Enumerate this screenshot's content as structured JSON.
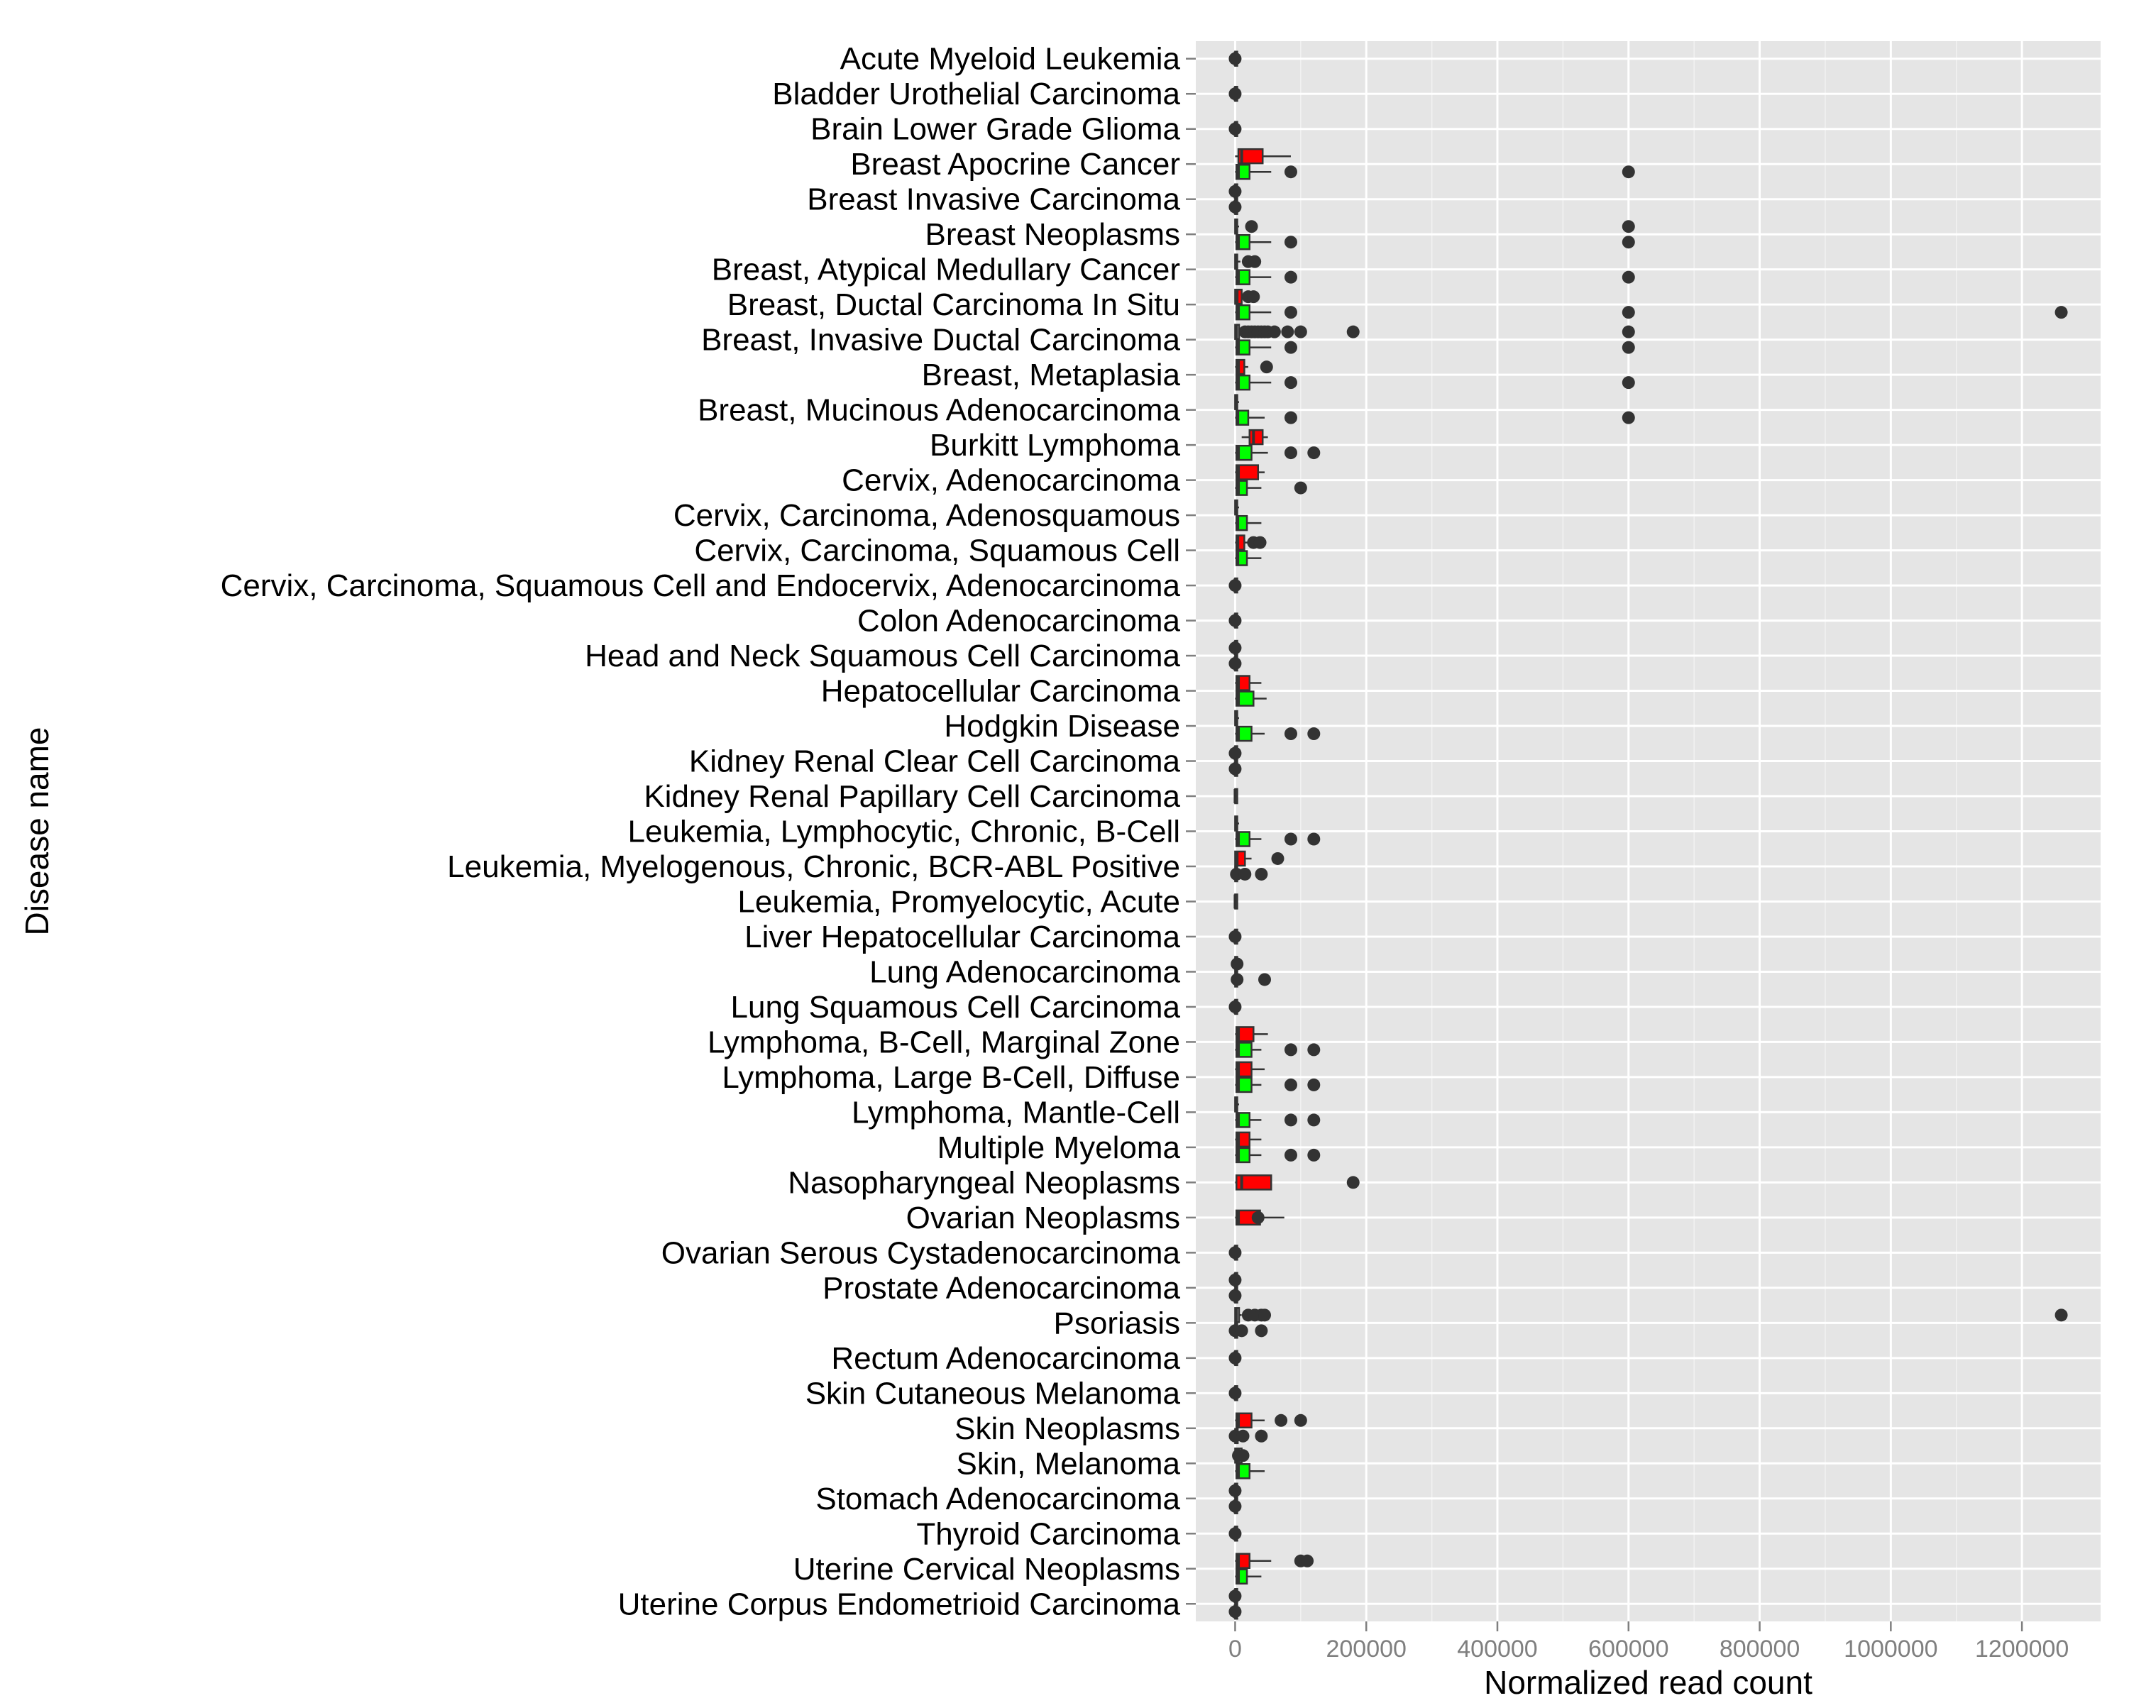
{
  "chart_data": {
    "type": "boxplot",
    "orientation": "horizontal",
    "xlabel": "Normalized read count",
    "ylabel": "Disease name",
    "xlim": [
      -60000,
      1320000
    ],
    "x_ticks": [
      0,
      200000,
      400000,
      600000,
      800000,
      1000000,
      1200000
    ],
    "x_tick_labels": [
      "0",
      "200000",
      "400000",
      "600000",
      "800000",
      "1000000",
      "1200000"
    ],
    "grid": true,
    "legend": "none",
    "series_colors": {
      "red": "#ff0000",
      "green": "#00ff00"
    },
    "panel_background": "#e5e5e5",
    "categories": [
      "Acute Myeloid Leukemia",
      "Bladder Urothelial Carcinoma",
      "Brain Lower Grade Glioma",
      "Breast Apocrine Cancer",
      "Breast Invasive Carcinoma",
      "Breast Neoplasms",
      "Breast, Atypical Medullary Cancer",
      "Breast, Ductal Carcinoma In Situ",
      "Breast, Invasive Ductal Carcinoma",
      "Breast, Metaplasia",
      "Breast, Mucinous Adenocarcinoma",
      "Burkitt Lymphoma",
      "Cervix, Adenocarcinoma",
      "Cervix, Carcinoma, Adenosquamous",
      "Cervix, Carcinoma, Squamous Cell",
      "Cervix, Carcinoma, Squamous Cell and Endocervix, Adenocarcinoma",
      "Colon Adenocarcinoma",
      "Head and Neck Squamous Cell Carcinoma",
      "Hepatocellular Carcinoma",
      "Hodgkin Disease",
      "Kidney Renal Clear Cell Carcinoma",
      "Kidney Renal Papillary Cell Carcinoma",
      "Leukemia, Lymphocytic, Chronic, B-Cell",
      "Leukemia, Myelogenous, Chronic, BCR-ABL Positive",
      "Leukemia, Promyelocytic, Acute",
      "Liver Hepatocellular Carcinoma",
      "Lung Adenocarcinoma",
      "Lung Squamous Cell Carcinoma",
      "Lymphoma, B-Cell, Marginal Zone",
      "Lymphoma, Large B-Cell, Diffuse",
      "Lymphoma, Mantle-Cell",
      "Multiple Myeloma",
      "Nasopharyngeal Neoplasms",
      "Ovarian Neoplasms",
      "Ovarian Serous Cystadenocarcinoma",
      "Prostate Adenocarcinoma",
      "Psoriasis",
      "Rectum Adenocarcinoma",
      "Skin Cutaneous Melanoma",
      "Skin Neoplasms",
      "Skin, Melanoma",
      "Stomach Adenocarcinoma",
      "Thyroid Carcinoma",
      "Uterine Cervical Neoplasms",
      "Uterine Corpus Endometrioid Carcinoma"
    ],
    "boxes": [
      {
        "category": 0,
        "group": "other",
        "q1": 0,
        "median": 0,
        "q3": 0,
        "wlo": 0,
        "whi": 0,
        "outliers": [
          0
        ]
      },
      {
        "category": 1,
        "group": "other",
        "q1": 0,
        "median": 0,
        "q3": 0,
        "wlo": 0,
        "whi": 0,
        "outliers": [
          0
        ]
      },
      {
        "category": 2,
        "group": "other",
        "q1": 0,
        "median": 0,
        "q3": 0,
        "wlo": 0,
        "whi": 0,
        "outliers": [
          0
        ]
      },
      {
        "category": 3,
        "group": "red",
        "q1": 5000,
        "median": 10000,
        "q3": 42000,
        "wlo": 0,
        "whi": 85000,
        "outliers": []
      },
      {
        "category": 3,
        "group": "green",
        "q1": 2000,
        "median": 5000,
        "q3": 22000,
        "wlo": 0,
        "whi": 55000,
        "outliers": [
          85000,
          600000
        ]
      },
      {
        "category": 4,
        "group": "other",
        "q1": 0,
        "median": 0,
        "q3": 0,
        "wlo": 0,
        "whi": 0,
        "outliers": [
          0
        ]
      },
      {
        "category": 4,
        "group": "other",
        "q1": 0,
        "median": 0,
        "q3": 0,
        "wlo": 0,
        "whi": 0,
        "outliers": [
          0
        ]
      },
      {
        "category": 5,
        "group": "other",
        "q1": 0,
        "median": 1000,
        "q3": 3000,
        "wlo": 0,
        "whi": 6000,
        "outliers": [
          25000,
          600000
        ]
      },
      {
        "category": 5,
        "group": "green",
        "q1": 2000,
        "median": 5000,
        "q3": 22000,
        "wlo": 0,
        "whi": 55000,
        "outliers": [
          85000,
          600000
        ]
      },
      {
        "category": 6,
        "group": "other",
        "q1": 0,
        "median": 1000,
        "q3": 3000,
        "wlo": 0,
        "whi": 8000,
        "outliers": [
          20000,
          30000
        ]
      },
      {
        "category": 6,
        "group": "green",
        "q1": 2000,
        "median": 5000,
        "q3": 22000,
        "wlo": 0,
        "whi": 55000,
        "outliers": [
          85000,
          600000
        ]
      },
      {
        "category": 7,
        "group": "red",
        "q1": 0,
        "median": 3000,
        "q3": 10000,
        "wlo": 0,
        "whi": 15000,
        "outliers": [
          20000,
          28000
        ]
      },
      {
        "category": 7,
        "group": "green",
        "q1": 2000,
        "median": 5000,
        "q3": 22000,
        "wlo": 0,
        "whi": 55000,
        "outliers": [
          85000,
          600000,
          1260000
        ]
      },
      {
        "category": 8,
        "group": "other",
        "q1": 0,
        "median": 2000,
        "q3": 6000,
        "wlo": 0,
        "whi": 12000,
        "outliers": [
          15000,
          20000,
          25000,
          30000,
          35000,
          40000,
          45000,
          50000,
          60000,
          80000,
          100000,
          180000,
          600000
        ]
      },
      {
        "category": 8,
        "group": "green",
        "q1": 2000,
        "median": 5000,
        "q3": 22000,
        "wlo": 0,
        "whi": 55000,
        "outliers": [
          85000,
          600000
        ]
      },
      {
        "category": 9,
        "group": "red",
        "q1": 2000,
        "median": 5000,
        "q3": 14000,
        "wlo": 0,
        "whi": 20000,
        "outliers": [
          48000
        ]
      },
      {
        "category": 9,
        "group": "green",
        "q1": 2000,
        "median": 5000,
        "q3": 22000,
        "wlo": 0,
        "whi": 55000,
        "outliers": [
          85000,
          600000
        ]
      },
      {
        "category": 10,
        "group": "other",
        "q1": 0,
        "median": 1000,
        "q3": 3000,
        "wlo": 0,
        "whi": 6000,
        "outliers": []
      },
      {
        "category": 10,
        "group": "green",
        "q1": 2000,
        "median": 4000,
        "q3": 20000,
        "wlo": 0,
        "whi": 45000,
        "outliers": [
          85000,
          600000
        ]
      },
      {
        "category": 11,
        "group": "red",
        "q1": 22000,
        "median": 28000,
        "q3": 42000,
        "wlo": 10000,
        "whi": 50000,
        "outliers": []
      },
      {
        "category": 11,
        "group": "green",
        "q1": 2000,
        "median": 5000,
        "q3": 25000,
        "wlo": 0,
        "whi": 50000,
        "outliers": [
          85000,
          120000
        ]
      },
      {
        "category": 12,
        "group": "red",
        "q1": 2000,
        "median": 5000,
        "q3": 35000,
        "wlo": 0,
        "whi": 45000,
        "outliers": []
      },
      {
        "category": 12,
        "group": "green",
        "q1": 2000,
        "median": 5000,
        "q3": 18000,
        "wlo": 0,
        "whi": 40000,
        "outliers": [
          100000
        ]
      },
      {
        "category": 13,
        "group": "other",
        "q1": 0,
        "median": 1000,
        "q3": 3000,
        "wlo": 0,
        "whi": 6000,
        "outliers": []
      },
      {
        "category": 13,
        "group": "green",
        "q1": 2000,
        "median": 4000,
        "q3": 18000,
        "wlo": 0,
        "whi": 40000,
        "outliers": []
      },
      {
        "category": 14,
        "group": "red",
        "q1": 2000,
        "median": 4000,
        "q3": 14000,
        "wlo": 0,
        "whi": 20000,
        "outliers": [
          28000,
          38000
        ]
      },
      {
        "category": 14,
        "group": "green",
        "q1": 2000,
        "median": 4000,
        "q3": 18000,
        "wlo": 0,
        "whi": 40000,
        "outliers": []
      },
      {
        "category": 15,
        "group": "other",
        "q1": 0,
        "median": 0,
        "q3": 0,
        "wlo": 0,
        "whi": 0,
        "outliers": [
          0
        ]
      },
      {
        "category": 16,
        "group": "other",
        "q1": 0,
        "median": 0,
        "q3": 0,
        "wlo": 0,
        "whi": 0,
        "outliers": [
          0
        ]
      },
      {
        "category": 17,
        "group": "other",
        "q1": 0,
        "median": 0,
        "q3": 0,
        "wlo": 0,
        "whi": 0,
        "outliers": [
          0
        ]
      },
      {
        "category": 17,
        "group": "other",
        "q1": 0,
        "median": 0,
        "q3": 0,
        "wlo": 0,
        "whi": 0,
        "outliers": [
          0
        ]
      },
      {
        "category": 18,
        "group": "red",
        "q1": 2000,
        "median": 5000,
        "q3": 22000,
        "wlo": 0,
        "whi": 40000,
        "outliers": []
      },
      {
        "category": 18,
        "group": "green",
        "q1": 2000,
        "median": 5000,
        "q3": 28000,
        "wlo": 0,
        "whi": 48000,
        "outliers": []
      },
      {
        "category": 19,
        "group": "other",
        "q1": 0,
        "median": 1000,
        "q3": 3000,
        "wlo": 0,
        "whi": 6000,
        "outliers": []
      },
      {
        "category": 19,
        "group": "green",
        "q1": 2000,
        "median": 5000,
        "q3": 25000,
        "wlo": 0,
        "whi": 45000,
        "outliers": [
          85000,
          120000
        ]
      },
      {
        "category": 20,
        "group": "other",
        "q1": 0,
        "median": 0,
        "q3": 0,
        "wlo": 0,
        "whi": 0,
        "outliers": [
          0
        ]
      },
      {
        "category": 20,
        "group": "other",
        "q1": 0,
        "median": 0,
        "q3": 0,
        "wlo": 0,
        "whi": 0,
        "outliers": [
          0
        ]
      },
      {
        "category": 21,
        "group": "other",
        "q1": 0,
        "median": 0,
        "q3": 0,
        "wlo": 0,
        "whi": 0,
        "outliers": []
      },
      {
        "category": 22,
        "group": "other",
        "q1": 0,
        "median": 1000,
        "q3": 3000,
        "wlo": 0,
        "whi": 6000,
        "outliers": []
      },
      {
        "category": 22,
        "group": "green",
        "q1": 2000,
        "median": 5000,
        "q3": 22000,
        "wlo": 0,
        "whi": 40000,
        "outliers": [
          85000,
          120000
        ]
      },
      {
        "category": 23,
        "group": "red",
        "q1": 0,
        "median": 3000,
        "q3": 15000,
        "wlo": 0,
        "whi": 25000,
        "outliers": [
          65000
        ]
      },
      {
        "category": 23,
        "group": "other",
        "q1": 0,
        "median": 1000,
        "q3": 3000,
        "wlo": 0,
        "whi": 10000,
        "outliers": [
          2000,
          15000,
          40000
        ]
      },
      {
        "category": 24,
        "group": "other",
        "q1": 0,
        "median": 0,
        "q3": 0,
        "wlo": 0,
        "whi": 0,
        "outliers": []
      },
      {
        "category": 25,
        "group": "other",
        "q1": 0,
        "median": 0,
        "q3": 0,
        "wlo": 0,
        "whi": 0,
        "outliers": [
          0
        ]
      },
      {
        "category": 26,
        "group": "other",
        "q1": 0,
        "median": 1000,
        "q3": 3000,
        "wlo": 0,
        "whi": 6000,
        "outliers": [
          3000
        ]
      },
      {
        "category": 26,
        "group": "other",
        "q1": 0,
        "median": 1000,
        "q3": 3000,
        "wlo": 0,
        "whi": 6000,
        "outliers": [
          3000,
          45000
        ]
      },
      {
        "category": 27,
        "group": "other",
        "q1": 0,
        "median": 0,
        "q3": 0,
        "wlo": 0,
        "whi": 0,
        "outliers": [
          0
        ]
      },
      {
        "category": 28,
        "group": "red",
        "q1": 2000,
        "median": 5000,
        "q3": 28000,
        "wlo": 0,
        "whi": 50000,
        "outliers": []
      },
      {
        "category": 28,
        "group": "green",
        "q1": 2000,
        "median": 5000,
        "q3": 25000,
        "wlo": 0,
        "whi": 40000,
        "outliers": [
          85000,
          120000
        ]
      },
      {
        "category": 29,
        "group": "red",
        "q1": 2000,
        "median": 5000,
        "q3": 25000,
        "wlo": 0,
        "whi": 45000,
        "outliers": []
      },
      {
        "category": 29,
        "group": "green",
        "q1": 2000,
        "median": 5000,
        "q3": 25000,
        "wlo": 0,
        "whi": 40000,
        "outliers": [
          85000,
          120000
        ]
      },
      {
        "category": 30,
        "group": "other",
        "q1": 0,
        "median": 1000,
        "q3": 3000,
        "wlo": 0,
        "whi": 6000,
        "outliers": []
      },
      {
        "category": 30,
        "group": "green",
        "q1": 2000,
        "median": 5000,
        "q3": 22000,
        "wlo": 0,
        "whi": 40000,
        "outliers": [
          85000,
          120000
        ]
      },
      {
        "category": 31,
        "group": "red",
        "q1": 2000,
        "median": 5000,
        "q3": 22000,
        "wlo": 0,
        "whi": 40000,
        "outliers": []
      },
      {
        "category": 31,
        "group": "green",
        "q1": 2000,
        "median": 5000,
        "q3": 22000,
        "wlo": 0,
        "whi": 40000,
        "outliers": [
          85000,
          120000
        ]
      },
      {
        "category": 32,
        "group": "red",
        "q1": 2000,
        "median": 10000,
        "q3": 55000,
        "wlo": 0,
        "whi": 55000,
        "outliers": [
          180000
        ]
      },
      {
        "category": 33,
        "group": "red",
        "q1": 2000,
        "median": 5000,
        "q3": 38000,
        "wlo": 0,
        "whi": 75000,
        "outliers": [
          35000
        ]
      },
      {
        "category": 34,
        "group": "other",
        "q1": 0,
        "median": 0,
        "q3": 0,
        "wlo": 0,
        "whi": 0,
        "outliers": [
          0
        ]
      },
      {
        "category": 35,
        "group": "other",
        "q1": 0,
        "median": 0,
        "q3": 0,
        "wlo": 0,
        "whi": 0,
        "outliers": [
          0
        ]
      },
      {
        "category": 35,
        "group": "other",
        "q1": 0,
        "median": 0,
        "q3": 0,
        "wlo": 0,
        "whi": 0,
        "outliers": [
          0
        ]
      },
      {
        "category": 36,
        "group": "other",
        "q1": 0,
        "median": 2000,
        "q3": 6000,
        "wlo": 0,
        "whi": 10000,
        "outliers": [
          20000,
          30000,
          40000,
          45000,
          1260000
        ]
      },
      {
        "category": 36,
        "group": "other",
        "q1": 0,
        "median": 1000,
        "q3": 3000,
        "wlo": 0,
        "whi": 6000,
        "outliers": [
          0,
          10000,
          40000
        ]
      },
      {
        "category": 37,
        "group": "other",
        "q1": 0,
        "median": 0,
        "q3": 0,
        "wlo": 0,
        "whi": 0,
        "outliers": [
          0
        ]
      },
      {
        "category": 38,
        "group": "other",
        "q1": 0,
        "median": 0,
        "q3": 0,
        "wlo": 0,
        "whi": 0,
        "outliers": [
          0
        ]
      },
      {
        "category": 39,
        "group": "red",
        "q1": 2000,
        "median": 5000,
        "q3": 25000,
        "wlo": 0,
        "whi": 45000,
        "outliers": [
          70000,
          100000
        ]
      },
      {
        "category": 39,
        "group": "other",
        "q1": 0,
        "median": 1000,
        "q3": 4000,
        "wlo": 0,
        "whi": 8000,
        "outliers": [
          0,
          12000,
          40000
        ]
      },
      {
        "category": 40,
        "group": "other",
        "q1": 0,
        "median": 2000,
        "q3": 10000,
        "wlo": 0,
        "whi": 15000,
        "outliers": [
          5000,
          12000
        ]
      },
      {
        "category": 40,
        "group": "green",
        "q1": 2000,
        "median": 5000,
        "q3": 22000,
        "wlo": 0,
        "whi": 45000,
        "outliers": []
      },
      {
        "category": 41,
        "group": "other",
        "q1": 0,
        "median": 0,
        "q3": 0,
        "wlo": 0,
        "whi": 0,
        "outliers": [
          0
        ]
      },
      {
        "category": 41,
        "group": "other",
        "q1": 0,
        "median": 0,
        "q3": 0,
        "wlo": 0,
        "whi": 0,
        "outliers": [
          0
        ]
      },
      {
        "category": 42,
        "group": "other",
        "q1": 0,
        "median": 0,
        "q3": 0,
        "wlo": 0,
        "whi": 0,
        "outliers": [
          0
        ]
      },
      {
        "category": 43,
        "group": "red",
        "q1": 2000,
        "median": 5000,
        "q3": 22000,
        "wlo": 0,
        "whi": 55000,
        "outliers": [
          100000,
          110000
        ]
      },
      {
        "category": 43,
        "group": "green",
        "q1": 2000,
        "median": 5000,
        "q3": 18000,
        "wlo": 0,
        "whi": 40000,
        "outliers": []
      },
      {
        "category": 44,
        "group": "other",
        "q1": 0,
        "median": 0,
        "q3": 0,
        "wlo": 0,
        "whi": 0,
        "outliers": [
          0
        ]
      },
      {
        "category": 44,
        "group": "other",
        "q1": 0,
        "median": 0,
        "q3": 0,
        "wlo": 0,
        "whi": 0,
        "outliers": [
          0
        ]
      }
    ]
  }
}
